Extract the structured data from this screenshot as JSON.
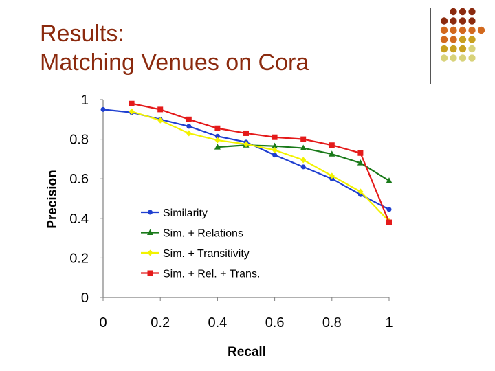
{
  "slide": {
    "title_line1": "Results:",
    "title_line2": "Matching Venues on Cora",
    "title_color": "#8b2a0e"
  },
  "decoration": {
    "dot_colors": [
      "#8b2a0e",
      "#d2691e",
      "#c8a020",
      "#d8d27a"
    ]
  },
  "chart_data": {
    "type": "line",
    "xlabel": "Recall",
    "ylabel": "Precision",
    "xlim": [
      0,
      1
    ],
    "ylim": [
      0,
      1
    ],
    "xticks": [
      "0",
      "0.2",
      "0.4",
      "0.6",
      "0.8",
      "1"
    ],
    "yticks": [
      "0",
      "0.2",
      "0.4",
      "0.6",
      "0.8",
      "1"
    ],
    "grid": false,
    "legend_position": "center-left",
    "series": [
      {
        "name": "Similarity",
        "color": "#1f3fd0",
        "marker": "circle",
        "x": [
          0,
          0.1,
          0.2,
          0.3,
          0.4,
          0.5,
          0.6,
          0.7,
          0.8,
          0.9,
          1.0
        ],
        "y": [
          0.95,
          0.935,
          0.9,
          0.865,
          0.815,
          0.785,
          0.72,
          0.66,
          0.6,
          0.52,
          0.445
        ]
      },
      {
        "name": "Sim. + Relations",
        "color": "#1a7a1a",
        "marker": "triangle",
        "x": [
          0.4,
          0.5,
          0.6,
          0.7,
          0.8,
          0.9,
          1.0
        ],
        "y": [
          0.76,
          0.77,
          0.765,
          0.755,
          0.725,
          0.68,
          0.59
        ]
      },
      {
        "name": "Sim. + Transitivity",
        "color": "#f2f200",
        "marker": "diamond",
        "x": [
          0.1,
          0.2,
          0.3,
          0.4,
          0.5,
          0.6,
          0.7,
          0.8,
          0.9,
          1.0
        ],
        "y": [
          0.94,
          0.895,
          0.83,
          0.795,
          0.775,
          0.745,
          0.695,
          0.615,
          0.535,
          0.385
        ]
      },
      {
        "name": "Sim. + Rel. + Trans.",
        "color": "#e41a1a",
        "marker": "square",
        "x": [
          0.1,
          0.2,
          0.3,
          0.4,
          0.5,
          0.6,
          0.7,
          0.8,
          0.9,
          1.0
        ],
        "y": [
          0.98,
          0.95,
          0.9,
          0.855,
          0.83,
          0.81,
          0.8,
          0.77,
          0.73,
          0.38
        ]
      }
    ]
  }
}
